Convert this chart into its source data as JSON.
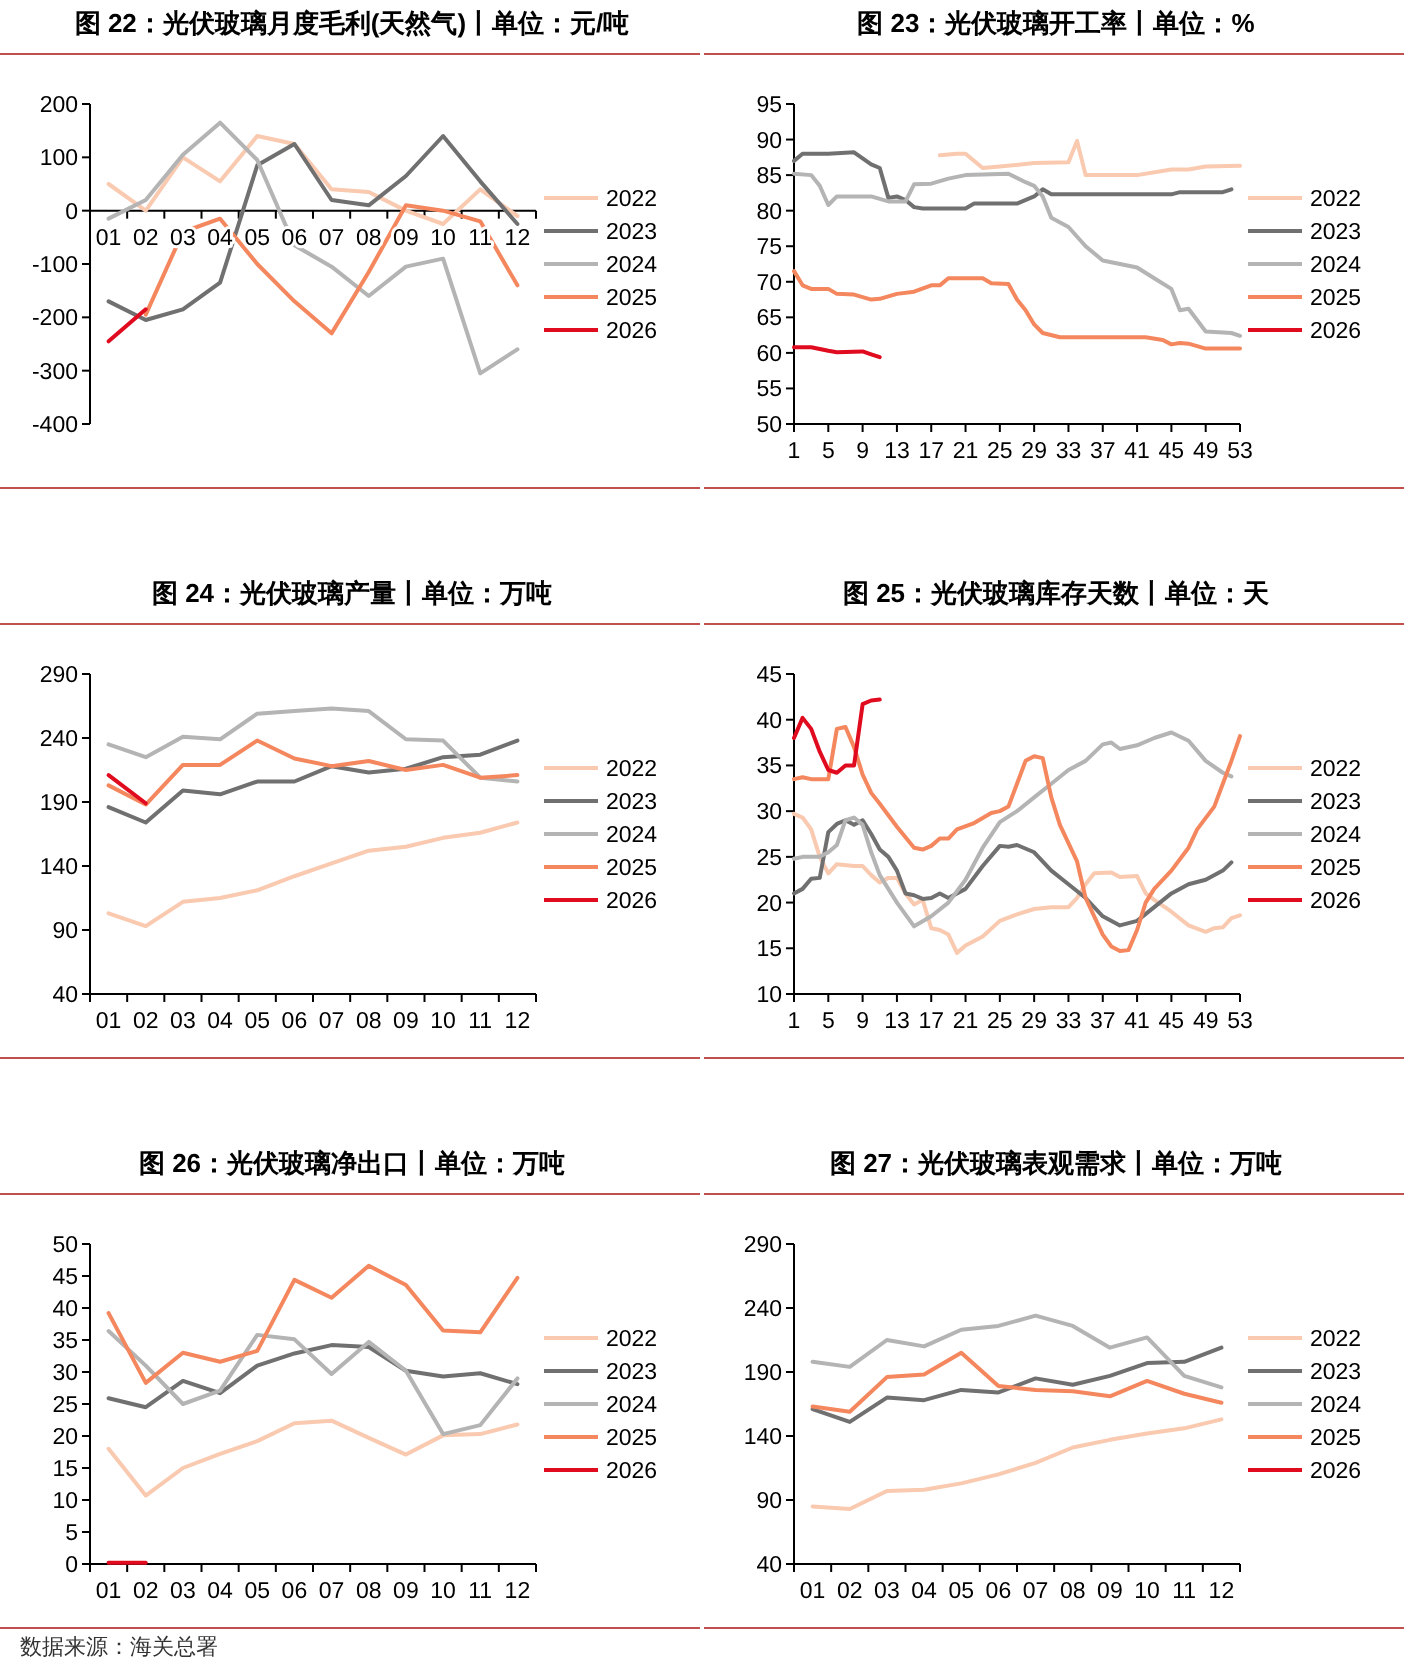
{
  "chart_data": [
    {
      "type": "line",
      "title": "图 22：光伏玻璃月度毛利(天然气)丨单位：元/吨",
      "categories": [
        "01",
        "02",
        "03",
        "04",
        "05",
        "06",
        "07",
        "08",
        "09",
        "10",
        "11",
        "12"
      ],
      "ylim": [
        -400,
        200
      ],
      "yticks": [
        -400,
        -300,
        -200,
        -100,
        0,
        100,
        200
      ],
      "legend": "right",
      "series": [
        {
          "name": "2022",
          "color": "#f9c9b0",
          "values": [
            50,
            0,
            100,
            55,
            140,
            125,
            40,
            35,
            0,
            -25,
            40,
            -10
          ]
        },
        {
          "name": "2023",
          "color": "#707070",
          "values": [
            -170,
            -205,
            -185,
            -135,
            85,
            125,
            20,
            10,
            65,
            140,
            55,
            -25
          ]
        },
        {
          "name": "2024",
          "color": "#b4b4b4",
          "values": [
            -15,
            20,
            105,
            165,
            95,
            -65,
            -105,
            -160,
            -105,
            -90,
            -305,
            -260
          ]
        },
        {
          "name": "2025",
          "color": "#f4875e",
          "values": [
            null,
            -195,
            -40,
            -15,
            -100,
            -170,
            -230,
            -115,
            10,
            0,
            -20,
            -140
          ]
        },
        {
          "name": "2026",
          "color": "#e00b1f",
          "values": [
            -245,
            -185,
            null,
            null,
            null,
            null,
            null,
            null,
            null,
            null,
            null,
            null
          ]
        }
      ]
    },
    {
      "type": "line",
      "title": "图 23：光伏玻璃开工率丨单位：%",
      "xlim": [
        1,
        53
      ],
      "xticks": [
        1,
        5,
        9,
        13,
        17,
        21,
        25,
        29,
        33,
        37,
        41,
        45,
        49,
        53
      ],
      "ylim": [
        50,
        95
      ],
      "yticks": [
        50,
        55,
        60,
        65,
        70,
        75,
        80,
        85,
        90,
        95
      ],
      "legend": "right",
      "series": [
        {
          "name": "2022",
          "color": "#f9c9b0",
          "x": [
            18,
            20,
            21,
            23,
            25,
            29,
            33,
            34,
            35,
            41,
            45,
            47,
            49,
            53
          ],
          "values": [
            87.8,
            88,
            88,
            86,
            86.2,
            86.7,
            86.8,
            89.8,
            85,
            85,
            85.8,
            85.8,
            86.2,
            86.3
          ]
        },
        {
          "name": "2023",
          "color": "#707070",
          "x": [
            1,
            2,
            5,
            8,
            10,
            11,
            12,
            13,
            14,
            15,
            16,
            21,
            22,
            27,
            29,
            30,
            31,
            45,
            46,
            51,
            52
          ],
          "values": [
            87,
            88,
            88,
            88.2,
            86.5,
            86,
            81.8,
            82,
            81.5,
            80.5,
            80.3,
            80.3,
            81,
            81,
            82,
            83,
            82.3,
            82.3,
            82.6,
            82.6,
            83
          ]
        },
        {
          "name": "2024",
          "color": "#b4b4b4",
          "x": [
            1,
            3,
            4,
            5,
            6,
            10,
            12,
            14,
            15,
            17,
            19,
            21,
            26,
            28,
            29,
            30,
            31,
            33,
            35,
            37,
            39,
            41,
            43,
            45,
            46,
            47,
            49,
            52,
            53
          ],
          "values": [
            85.2,
            85,
            83.5,
            80.8,
            82,
            82,
            81.3,
            81.3,
            83.7,
            83.8,
            84.5,
            85,
            85.2,
            84,
            83.5,
            82,
            79,
            77.7,
            75,
            73,
            72.5,
            72,
            70.5,
            69,
            66,
            66.2,
            63,
            62.8,
            62.4
          ]
        },
        {
          "name": "2025",
          "color": "#f4875e",
          "x": [
            1,
            2,
            3,
            5,
            6,
            8,
            10,
            11,
            13,
            15,
            17,
            18,
            19,
            23,
            24,
            26,
            27,
            28,
            29,
            30,
            32,
            42,
            44,
            45,
            46,
            47,
            49,
            53
          ],
          "values": [
            71.5,
            69.5,
            69,
            69,
            68.3,
            68.2,
            67.5,
            67.6,
            68.3,
            68.6,
            69.5,
            69.5,
            70.5,
            70.5,
            69.8,
            69.7,
            67.5,
            66,
            64,
            62.8,
            62.2,
            62.2,
            61.8,
            61.2,
            61.4,
            61.3,
            60.6,
            60.6
          ]
        },
        {
          "name": "2026",
          "color": "#e00b1f",
          "x": [
            1,
            3,
            5,
            6,
            9,
            10,
            11
          ],
          "values": [
            60.8,
            60.8,
            60.3,
            60.1,
            60.2,
            59.8,
            59.4
          ]
        }
      ]
    },
    {
      "type": "line",
      "title": "图 24：光伏玻璃产量丨单位：万吨",
      "categories": [
        "01",
        "02",
        "03",
        "04",
        "05",
        "06",
        "07",
        "08",
        "09",
        "10",
        "11",
        "12"
      ],
      "ylim": [
        40,
        290
      ],
      "yticks": [
        40,
        90,
        140,
        190,
        240,
        290
      ],
      "legend": "right",
      "series": [
        {
          "name": "2022",
          "color": "#f9c9b0",
          "values": [
            103,
            93,
            112,
            115,
            121,
            132,
            142,
            152,
            155,
            162,
            166,
            174
          ]
        },
        {
          "name": "2023",
          "color": "#707070",
          "values": [
            186,
            174,
            199,
            196,
            206,
            206,
            218,
            213,
            216,
            225,
            227,
            238
          ]
        },
        {
          "name": "2024",
          "color": "#b4b4b4",
          "values": [
            235,
            225,
            241,
            239,
            259,
            261,
            263,
            261,
            239,
            238,
            209,
            206
          ]
        },
        {
          "name": "2025",
          "color": "#f4875e",
          "values": [
            203,
            188,
            219,
            219,
            238,
            224,
            218,
            222,
            215,
            219,
            209,
            211
          ]
        },
        {
          "name": "2026",
          "color": "#e00b1f",
          "values": [
            211,
            189,
            null,
            null,
            null,
            null,
            null,
            null,
            null,
            null,
            null,
            null
          ]
        }
      ]
    },
    {
      "type": "line",
      "title": "图 25：光伏玻璃库存天数丨单位：天",
      "xlim": [
        1,
        53
      ],
      "xticks": [
        1,
        5,
        9,
        13,
        17,
        21,
        25,
        29,
        33,
        37,
        41,
        45,
        49,
        53
      ],
      "ylim": [
        10,
        45
      ],
      "yticks": [
        10,
        15,
        20,
        25,
        30,
        35,
        40,
        45
      ],
      "legend": "right",
      "series": [
        {
          "name": "2022",
          "color": "#f9c9b0",
          "x": [
            1,
            2,
            3,
            4,
            5,
            6,
            8,
            9,
            10,
            11,
            12,
            13,
            14,
            15,
            16,
            17,
            18,
            19,
            20,
            21,
            23,
            25,
            27,
            29,
            31,
            33,
            34,
            35,
            36,
            38,
            39,
            41,
            42,
            43,
            45,
            47,
            49,
            50,
            51,
            52,
            53
          ],
          "values": [
            29.7,
            29.3,
            28,
            25,
            23.2,
            24.2,
            24,
            24,
            23,
            22.2,
            22.7,
            22.7,
            21,
            19.8,
            20.3,
            17.2,
            17,
            16.5,
            14.5,
            15.3,
            16.3,
            18,
            18.7,
            19.3,
            19.5,
            19.5,
            20.5,
            22,
            23.2,
            23.3,
            22.8,
            22.9,
            21,
            20.3,
            19,
            17.5,
            16.8,
            17.2,
            17.3,
            18.3,
            18.6
          ]
        },
        {
          "name": "2023",
          "color": "#707070",
          "x": [
            1,
            2,
            3,
            4,
            5,
            6,
            7,
            8,
            9,
            10,
            11,
            12,
            13,
            14,
            15,
            16,
            17,
            18,
            19,
            21,
            23,
            25,
            26,
            27,
            29,
            31,
            33,
            35,
            37,
            39,
            41,
            43,
            45,
            47,
            49,
            51,
            52
          ],
          "values": [
            21,
            21.5,
            22.6,
            22.7,
            27.7,
            28.6,
            29,
            28.5,
            29,
            27.5,
            25.8,
            25,
            23.5,
            21,
            20.8,
            20.4,
            20.5,
            21,
            20.5,
            21.5,
            24,
            26.2,
            26.1,
            26.3,
            25.5,
            23.5,
            22,
            20.5,
            18.5,
            17.5,
            18,
            19.5,
            21,
            22,
            22.5,
            23.5,
            24.4
          ]
        },
        {
          "name": "2024",
          "color": "#b4b4b4",
          "x": [
            1,
            2,
            4,
            5,
            6,
            7,
            8,
            9,
            10,
            11,
            13,
            15,
            17,
            19,
            21,
            23,
            25,
            27,
            29,
            31,
            33,
            35,
            37,
            38,
            39,
            41,
            43,
            45,
            47,
            49,
            51,
            52
          ],
          "values": [
            24.8,
            25,
            25,
            25.5,
            26.3,
            29,
            29.3,
            28.5,
            25.5,
            23,
            20,
            17.4,
            18.5,
            20,
            22.5,
            26,
            28.8,
            30,
            31.5,
            33,
            34.5,
            35.5,
            37.3,
            37.5,
            36.8,
            37.2,
            38,
            38.6,
            37.7,
            35.5,
            34.2,
            33.8
          ]
        },
        {
          "name": "2025",
          "color": "#f4875e",
          "x": [
            1,
            2,
            3,
            5,
            6,
            7,
            8,
            9,
            10,
            11,
            13,
            15,
            16,
            17,
            18,
            19,
            20,
            22,
            24,
            25,
            26,
            27,
            28,
            29,
            30,
            31,
            32,
            33,
            34,
            35,
            36,
            37,
            38,
            39,
            40,
            41,
            42,
            43,
            45,
            47,
            48,
            50,
            51,
            52,
            53
          ],
          "values": [
            33.5,
            33.7,
            33.5,
            33.5,
            39,
            39.2,
            37,
            34,
            32,
            30.8,
            28.3,
            26,
            25.8,
            26.2,
            27,
            27,
            28,
            28.7,
            29.8,
            30,
            30.5,
            33,
            35.5,
            36,
            35.8,
            31.5,
            28.5,
            26.5,
            24.5,
            20.5,
            18.5,
            16.5,
            15.2,
            14.7,
            14.8,
            17,
            20,
            21.5,
            23.5,
            26,
            28,
            30.5,
            33,
            35.5,
            38.2
          ]
        },
        {
          "name": "2026",
          "color": "#e00b1f",
          "x": [
            1,
            2,
            3,
            4,
            5,
            6,
            7,
            8,
            9,
            10,
            11
          ],
          "values": [
            38,
            40.2,
            39,
            36.5,
            34.5,
            34.2,
            35,
            35,
            41.7,
            42.1,
            42.2
          ]
        }
      ]
    },
    {
      "type": "line",
      "title": "图 26：光伏玻璃净出口丨单位：万吨",
      "categories": [
        "01",
        "02",
        "03",
        "04",
        "05",
        "06",
        "07",
        "08",
        "09",
        "10",
        "11",
        "12"
      ],
      "ylim": [
        0,
        50
      ],
      "yticks": [
        0,
        5,
        10,
        15,
        20,
        25,
        30,
        35,
        40,
        45,
        50
      ],
      "legend": "right",
      "annotations": [
        "数据来源：海关总署"
      ],
      "series": [
        {
          "name": "2022",
          "color": "#f9c9b0",
          "values": [
            18,
            10.7,
            15,
            17.2,
            19.2,
            22,
            22.4,
            19.7,
            17.1,
            20.1,
            20.3,
            21.8
          ]
        },
        {
          "name": "2023",
          "color": "#707070",
          "values": [
            25.9,
            24.5,
            28.6,
            26.7,
            31,
            32.9,
            34.2,
            33.9,
            30.2,
            29.3,
            29.8,
            28.1
          ]
        },
        {
          "name": "2024",
          "color": "#b4b4b4",
          "values": [
            36.4,
            31,
            25,
            27.1,
            35.8,
            35.1,
            29.7,
            34.7,
            30.2,
            20.3,
            21.7,
            29
          ]
        },
        {
          "name": "2025",
          "color": "#f4875e",
          "values": [
            39.2,
            28.3,
            33,
            31.6,
            33.3,
            44.4,
            41.6,
            46.6,
            43.6,
            36.5,
            36.2,
            44.7
          ]
        },
        {
          "name": "2026",
          "color": "#e00b1f",
          "values": [
            0.2,
            0.2,
            null,
            null,
            null,
            null,
            null,
            null,
            null,
            null,
            null,
            null
          ]
        }
      ]
    },
    {
      "type": "line",
      "title": "图 27：光伏玻璃表观需求丨单位：万吨",
      "categories": [
        "01",
        "02",
        "03",
        "04",
        "05",
        "06",
        "07",
        "08",
        "09",
        "10",
        "11",
        "12"
      ],
      "ylim": [
        40,
        290
      ],
      "yticks": [
        40,
        90,
        140,
        190,
        240,
        290
      ],
      "legend": "right",
      "series": [
        {
          "name": "2022",
          "color": "#f9c9b0",
          "values": [
            85,
            83,
            97,
            98,
            103,
            110,
            119,
            131,
            137,
            142,
            146,
            153
          ]
        },
        {
          "name": "2023",
          "color": "#707070",
          "values": [
            161,
            151,
            170,
            168,
            176,
            174,
            185,
            180,
            187,
            197,
            198,
            209
          ]
        },
        {
          "name": "2024",
          "color": "#b4b4b4",
          "values": [
            198,
            194,
            215,
            210,
            223,
            226,
            234,
            226,
            209,
            217,
            187,
            178
          ]
        },
        {
          "name": "2025",
          "color": "#f4875e",
          "values": [
            163,
            159,
            186,
            188,
            205,
            179,
            176,
            175,
            171,
            183,
            173,
            166
          ]
        },
        {
          "name": "2026",
          "color": "#e00b1f",
          "values": [
            null,
            null,
            null,
            null,
            null,
            null,
            null,
            null,
            null,
            null,
            null,
            null
          ]
        }
      ]
    }
  ]
}
